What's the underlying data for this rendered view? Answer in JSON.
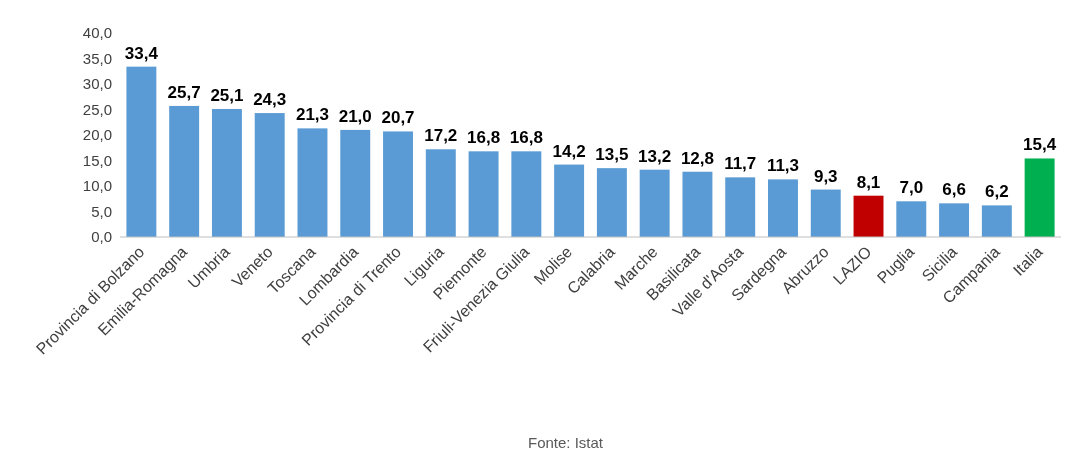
{
  "chart_data": {
    "type": "bar",
    "categories": [
      "Provincia di Bolzano",
      "Emilia-Romagna",
      "Umbria",
      "Veneto",
      "Toscana",
      "Lombardia",
      "Provincia di Trento",
      "Liguria",
      "Piemonte",
      "Friuli-Venezia Giulia",
      "Molise",
      "Calabria",
      "Marche",
      "Basilicata",
      "Valle d'Aosta",
      "Sardegna",
      "Abruzzo",
      "LAZIO",
      "Puglia",
      "Sicilia",
      "Campania",
      "Italia"
    ],
    "values": [
      33.4,
      25.7,
      25.1,
      24.3,
      21.3,
      21.0,
      20.7,
      17.2,
      16.8,
      16.8,
      14.2,
      13.5,
      13.2,
      12.8,
      11.7,
      11.3,
      9.3,
      8.1,
      7.0,
      6.6,
      6.2,
      15.4
    ],
    "colors": [
      "#5b9bd5",
      "#5b9bd5",
      "#5b9bd5",
      "#5b9bd5",
      "#5b9bd5",
      "#5b9bd5",
      "#5b9bd5",
      "#5b9bd5",
      "#5b9bd5",
      "#5b9bd5",
      "#5b9bd5",
      "#5b9bd5",
      "#5b9bd5",
      "#5b9bd5",
      "#5b9bd5",
      "#5b9bd5",
      "#5b9bd5",
      "#c00000",
      "#5b9bd5",
      "#5b9bd5",
      "#5b9bd5",
      "#00b050"
    ],
    "value_labels": [
      "33,4",
      "25,7",
      "25,1",
      "24,3",
      "21,3",
      "21,0",
      "20,7",
      "17,2",
      "16,8",
      "16,8",
      "14,2",
      "13,5",
      "13,2",
      "12,8",
      "11,7",
      "11,3",
      "9,3",
      "8,1",
      "7,0",
      "6,6",
      "6,2",
      "15,4"
    ],
    "ylim": [
      0,
      40
    ],
    "yticks": [
      {
        "value": 0,
        "label": "0,0"
      },
      {
        "value": 5,
        "label": "5,0"
      },
      {
        "value": 10,
        "label": "10,0"
      },
      {
        "value": 15,
        "label": "15,0"
      },
      {
        "value": 20,
        "label": "20,0"
      },
      {
        "value": 25,
        "label": "25,0"
      },
      {
        "value": 30,
        "label": "30,0"
      },
      {
        "value": 35,
        "label": "35,0"
      },
      {
        "value": 40,
        "label": "40,0"
      }
    ],
    "grid": false,
    "annotations": [
      "Fonte: Istat"
    ]
  }
}
